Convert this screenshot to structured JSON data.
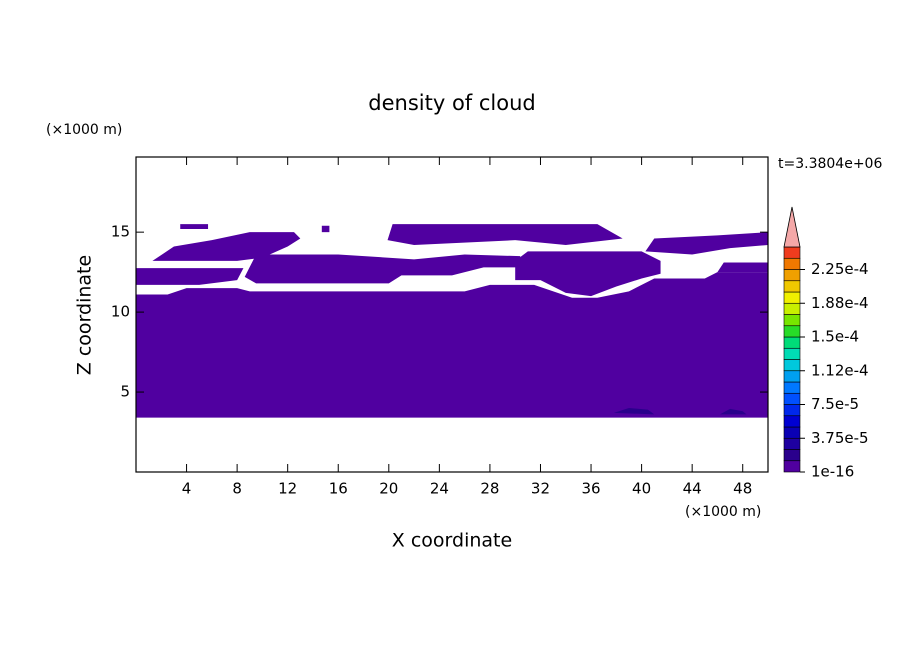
{
  "chart_data": {
    "type": "contour",
    "title": "density of cloud",
    "x_label": "X coordinate",
    "y_label": "Z coordinate",
    "x_unit": "(×1000 m)",
    "y_unit": "(×1000 m)",
    "time_label": "t=3.3804e+06",
    "xlim": [
      0,
      50
    ],
    "ylim": [
      0,
      19.7
    ],
    "xticks": [
      4,
      8,
      12,
      16,
      20,
      24,
      28,
      32,
      36,
      40,
      44,
      48
    ],
    "yticks": [
      5,
      10,
      15
    ],
    "colorbar": {
      "lim": [
        0,
        0.00025
      ],
      "extend": "max",
      "extend_color": "#f4a8a8",
      "colors": [
        "#5000a0",
        "#2a008c",
        "#1e00a0",
        "#0a00b4",
        "#0000d2",
        "#0028ec",
        "#0050ff",
        "#0078ff",
        "#00a0f0",
        "#00c8dc",
        "#00dcb4",
        "#00dc78",
        "#28dc28",
        "#78e600",
        "#c8f000",
        "#f0f000",
        "#f0c800",
        "#f0a000",
        "#f07800",
        "#f03c1e"
      ],
      "ticks": [
        1e-16,
        {
          "value": 3.75e-05,
          "label": "3.75e-5"
        },
        {
          "value": 7.5e-05,
          "label": "7.5e-5"
        },
        {
          "value": 0.0001125,
          "label": "1.12e-4"
        },
        {
          "value": 0.00015,
          "label": "1.5e-4"
        },
        {
          "value": 0.0001875,
          "label": "1.88e-4"
        },
        {
          "value": 0.000225,
          "label": "2.25e-4"
        }
      ]
    },
    "regions": [
      {
        "level": 0,
        "points": [
          [
            0,
            3.4
          ],
          [
            50,
            3.4
          ],
          [
            50,
            12.5
          ],
          [
            46,
            12.5
          ],
          [
            45,
            12.1
          ],
          [
            41,
            12.1
          ],
          [
            39,
            11.3
          ],
          [
            36.5,
            10.9
          ],
          [
            34.5,
            10.9
          ],
          [
            31.5,
            11.7
          ],
          [
            28,
            11.7
          ],
          [
            26,
            11.3
          ],
          [
            9,
            11.3
          ],
          [
            8,
            11.5
          ],
          [
            4,
            11.5
          ],
          [
            2.5,
            11.1
          ],
          [
            0,
            11.1
          ]
        ]
      },
      {
        "level": 0,
        "points": [
          [
            0,
            11.7
          ],
          [
            5,
            11.7
          ],
          [
            8,
            12.0
          ],
          [
            8.5,
            12.75
          ],
          [
            0,
            12.75
          ]
        ]
      },
      {
        "level": 0,
        "points": [
          [
            8.6,
            12.2
          ],
          [
            9.5,
            11.8
          ],
          [
            20,
            11.8
          ],
          [
            21,
            12.3
          ],
          [
            25,
            12.3
          ],
          [
            27.5,
            12.8
          ],
          [
            30.4,
            12.8
          ],
          [
            30.4,
            13.5
          ],
          [
            26,
            13.6
          ],
          [
            22,
            13.3
          ],
          [
            16,
            13.6
          ],
          [
            9.5,
            13.6
          ]
        ]
      },
      {
        "level": 0,
        "points": [
          [
            30,
            12.0
          ],
          [
            32,
            12.0
          ],
          [
            34,
            11.2
          ],
          [
            36,
            11.0
          ],
          [
            38,
            11.6
          ],
          [
            40,
            12.1
          ],
          [
            41.5,
            12.4
          ],
          [
            41.5,
            13.2
          ],
          [
            40,
            13.8
          ],
          [
            31,
            13.8
          ],
          [
            30,
            13.2
          ]
        ]
      },
      {
        "level": 0,
        "points": [
          [
            46,
            12.5
          ],
          [
            50,
            12.5
          ],
          [
            50,
            13.1
          ],
          [
            46.5,
            13.1
          ]
        ]
      },
      {
        "level": 0,
        "points": [
          [
            1.3,
            13.2
          ],
          [
            3,
            14.1
          ],
          [
            6,
            14.5
          ],
          [
            9,
            15
          ],
          [
            12.5,
            15.0
          ],
          [
            13,
            14.6
          ],
          [
            12,
            14.1
          ],
          [
            10,
            13.4
          ],
          [
            8,
            13.2
          ]
        ]
      },
      {
        "level": 0,
        "points": [
          [
            3.5,
            15.2
          ],
          [
            5.7,
            15.2
          ],
          [
            5.7,
            15.5
          ],
          [
            3.5,
            15.5
          ]
        ]
      },
      {
        "level": 0,
        "points": [
          [
            19.9,
            14.5
          ],
          [
            20.3,
            15.5
          ],
          [
            36.5,
            15.5
          ],
          [
            38.5,
            14.6
          ],
          [
            34,
            14.2
          ],
          [
            30,
            14.5
          ],
          [
            22,
            14.2
          ]
        ]
      },
      {
        "level": 0,
        "points": [
          [
            40.3,
            13.8
          ],
          [
            41,
            14.6
          ],
          [
            46,
            14.8
          ],
          [
            50,
            15.0
          ],
          [
            50,
            14.2
          ],
          [
            47,
            14.0
          ],
          [
            44,
            13.6
          ]
        ]
      },
      {
        "level": 0,
        "points": [
          [
            14.7,
            15.0
          ],
          [
            15.3,
            15.0
          ],
          [
            15.3,
            15.4
          ],
          [
            14.7,
            15.4
          ]
        ]
      },
      {
        "level": 1,
        "points": [
          [
            37.8,
            3.7
          ],
          [
            39,
            4.0
          ],
          [
            40.5,
            3.9
          ],
          [
            41,
            3.6
          ]
        ]
      },
      {
        "level": 1,
        "points": [
          [
            46.2,
            3.6
          ],
          [
            47,
            3.95
          ],
          [
            48,
            3.8
          ],
          [
            48.3,
            3.6
          ]
        ]
      }
    ]
  }
}
